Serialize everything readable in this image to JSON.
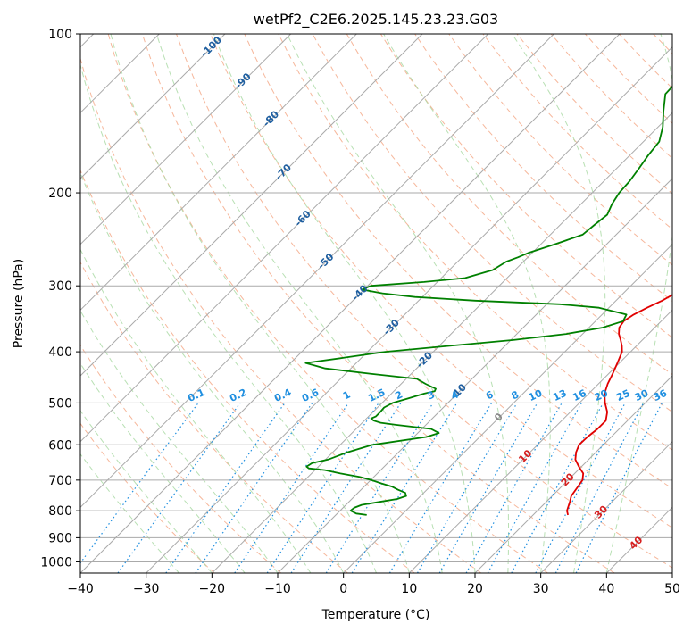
{
  "colors": {
    "temperature": "#e00000",
    "dewpoint": "#008000",
    "isotherm": "#aaaaaa",
    "isobar": "#aaaaaa",
    "dry_adiabat": "#f4a582",
    "moist_adiabat": "#a6d8a0",
    "mixing_ratio": "#1f8fe0",
    "isotherm_label_dark": "#1f5fa0",
    "isotherm_label_warm": "#d62020",
    "zero_label": "#888888",
    "mixing_label": "#1f8fe0",
    "frame": "#000000"
  },
  "chart_data": {
    "type": "line",
    "title": "wetPf2_C2E6.2025.145.23.23.G03",
    "xlabel": "Temperature (°C)",
    "ylabel": "Pressure (hPa)",
    "xlim": [
      -40,
      50
    ],
    "ylim": [
      1050,
      100
    ],
    "y_scale": "log",
    "x_ticks": [
      -40,
      -30,
      -20,
      -10,
      0,
      10,
      20,
      30,
      40,
      50
    ],
    "x_tick_labels": [
      "−40",
      "−30",
      "−20",
      "−10",
      "0",
      "10",
      "20",
      "30",
      "40",
      "50"
    ],
    "y_ticks": [
      100,
      200,
      300,
      400,
      500,
      600,
      700,
      800,
      900,
      1000
    ],
    "y_tick_labels": [
      "100",
      "200",
      "300",
      "400",
      "500",
      "600",
      "700",
      "800",
      "900",
      "1000"
    ],
    "grid": true,
    "skew": "skew-T",
    "series": [
      {
        "role": "temperature",
        "points": [
          [
            815,
            25.3
          ],
          [
            800,
            24.5
          ],
          [
            770,
            23.6
          ],
          [
            750,
            22.9
          ],
          [
            720,
            22.5
          ],
          [
            700,
            22.2
          ],
          [
            680,
            21.3
          ],
          [
            660,
            19.6
          ],
          [
            640,
            18.0
          ],
          [
            620,
            17.0
          ],
          [
            600,
            16.3
          ],
          [
            580,
            16.4
          ],
          [
            560,
            16.7
          ],
          [
            540,
            16.7
          ],
          [
            520,
            15.6
          ],
          [
            500,
            13.9
          ],
          [
            480,
            12.4
          ],
          [
            460,
            11.4
          ],
          [
            440,
            10.6
          ],
          [
            420,
            9.7
          ],
          [
            400,
            8.7
          ],
          [
            390,
            7.8
          ],
          [
            380,
            6.7
          ],
          [
            370,
            5.5
          ],
          [
            360,
            4.6
          ],
          [
            350,
            4.3
          ],
          [
            340,
            4.8
          ],
          [
            330,
            5.8
          ],
          [
            320,
            7.0
          ],
          [
            310,
            7.9
          ],
          [
            300,
            8.2
          ],
          [
            290,
            7.6
          ],
          [
            280,
            6.5
          ],
          [
            270,
            5.4
          ],
          [
            260,
            4.3
          ],
          [
            250,
            3.3
          ],
          [
            240,
            2.4
          ],
          [
            230,
            0.6
          ],
          [
            220,
            -1.3
          ],
          [
            210,
            -3.1
          ],
          [
            200,
            -5.0
          ],
          [
            190,
            -7.2
          ],
          [
            180,
            -9.2
          ],
          [
            170,
            -12.1
          ],
          [
            160,
            -14.4
          ],
          [
            150,
            -16.5
          ],
          [
            140,
            -18.8
          ],
          [
            130,
            -22.1
          ],
          [
            120,
            -25.1
          ],
          [
            115,
            -25.4
          ],
          [
            110,
            -25.5
          ],
          [
            105,
            -22.9
          ],
          [
            100,
            -20.1
          ]
        ]
      },
      {
        "role": "dewpoint",
        "points": [
          [
            815,
            -5.3
          ],
          [
            810,
            -7.1
          ],
          [
            800,
            -8.4
          ],
          [
            790,
            -8.3
          ],
          [
            780,
            -7.6
          ],
          [
            770,
            -5.4
          ],
          [
            760,
            -3.1
          ],
          [
            750,
            -2.2
          ],
          [
            740,
            -2.8
          ],
          [
            730,
            -4.4
          ],
          [
            720,
            -5.8
          ],
          [
            710,
            -7.9
          ],
          [
            700,
            -9.9
          ],
          [
            690,
            -12.2
          ],
          [
            680,
            -15.6
          ],
          [
            670,
            -18.5
          ],
          [
            665,
            -21.2
          ],
          [
            660,
            -21.8
          ],
          [
            650,
            -21.5
          ],
          [
            640,
            -19.6
          ],
          [
            620,
            -17.8
          ],
          [
            600,
            -15.1
          ],
          [
            580,
            -8.1
          ],
          [
            570,
            -6.8
          ],
          [
            560,
            -8.6
          ],
          [
            550,
            -14.6
          ],
          [
            545,
            -17.2
          ],
          [
            540,
            -18.6
          ],
          [
            535,
            -19.3
          ],
          [
            530,
            -18.9
          ],
          [
            520,
            -18.9
          ],
          [
            510,
            -19.0
          ],
          [
            500,
            -18.4
          ],
          [
            490,
            -16.7
          ],
          [
            480,
            -15.0
          ],
          [
            475,
            -13.8
          ],
          [
            470,
            -14.0
          ],
          [
            460,
            -16.3
          ],
          [
            450,
            -18.4
          ],
          [
            440,
            -26.3
          ],
          [
            430,
            -33.9
          ],
          [
            420,
            -37.7
          ],
          [
            410,
            -32.4
          ],
          [
            400,
            -27.3
          ],
          [
            390,
            -18.7
          ],
          [
            380,
            -9.6
          ],
          [
            370,
            -2.5
          ],
          [
            360,
            2.1
          ],
          [
            350,
            4.2
          ],
          [
            340,
            3.7
          ],
          [
            330,
            -1.5
          ],
          [
            325,
            -8.0
          ],
          [
            320,
            -21.4
          ],
          [
            315,
            -31.1
          ],
          [
            310,
            -36.6
          ],
          [
            305,
            -40.3
          ],
          [
            300,
            -39.5
          ],
          [
            295,
            -32.0
          ],
          [
            290,
            -26.4
          ],
          [
            280,
            -23.4
          ],
          [
            270,
            -22.6
          ],
          [
            265,
            -21.5
          ],
          [
            260,
            -20.6
          ],
          [
            250,
            -17.8
          ],
          [
            240,
            -15.1
          ],
          [
            230,
            -14.8
          ],
          [
            220,
            -14.4
          ],
          [
            210,
            -15.3
          ],
          [
            200,
            -15.9
          ],
          [
            190,
            -16.1
          ],
          [
            180,
            -16.6
          ],
          [
            170,
            -17.2
          ],
          [
            160,
            -17.6
          ],
          [
            150,
            -19.3
          ],
          [
            140,
            -21.6
          ],
          [
            130,
            -23.9
          ],
          [
            120,
            -24.1
          ],
          [
            110,
            -22.4
          ],
          [
            100,
            -21.0
          ]
        ]
      }
    ],
    "reference_lines": {
      "isotherms": "every 10 °C",
      "dry_adiabats": "every 10 K",
      "moist_adiabats": "every 5 °C",
      "mixing_ratios": [
        0.1,
        0.2,
        0.4,
        0.6,
        1,
        1.5,
        2,
        3,
        4,
        6,
        8,
        10,
        13,
        16,
        20,
        25,
        30,
        36
      ]
    },
    "annotations": {
      "isotherm_labels": [
        {
          "text": "-100",
          "value": -100,
          "pressure": 106
        },
        {
          "text": "-90",
          "value": -90,
          "pressure": 123
        },
        {
          "text": "-80",
          "value": -80,
          "pressure": 145
        },
        {
          "text": "-70",
          "value": -70,
          "pressure": 183
        },
        {
          "text": "-60",
          "value": -60,
          "pressure": 224
        },
        {
          "text": "-50",
          "value": -50,
          "pressure": 270
        },
        {
          "text": "-40",
          "value": -40,
          "pressure": 310
        },
        {
          "text": "-30",
          "value": -30,
          "pressure": 360
        },
        {
          "text": "-20",
          "value": -20,
          "pressure": 415
        },
        {
          "text": "-10",
          "value": -10,
          "pressure": 477
        },
        {
          "text": "0",
          "value": 0,
          "pressure": 533
        },
        {
          "text": "10",
          "value": 10,
          "pressure": 632
        },
        {
          "text": "20",
          "value": 20,
          "pressure": 700
        },
        {
          "text": "30",
          "value": 30,
          "pressure": 806
        },
        {
          "text": "40",
          "value": 40,
          "pressure": 922
        }
      ],
      "mixing_ratio_labels": [
        "0.1",
        "0.2",
        "0.4",
        "0.6",
        "1",
        "1.5",
        "2",
        "3",
        "4",
        "6",
        "8",
        "10",
        "13",
        "16",
        "20",
        "25",
        "30",
        "36"
      ]
    }
  }
}
